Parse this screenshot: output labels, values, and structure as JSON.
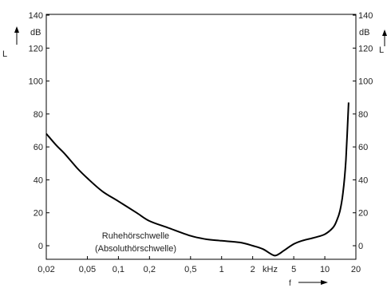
{
  "chart_data": {
    "type": "line",
    "xscale": "log",
    "xlim": [
      0.02,
      20
    ],
    "ylim": [
      -5,
      140
    ],
    "grid": false,
    "x_ticks": [
      {
        "value": 0.02,
        "label": "0,02"
      },
      {
        "value": 0.05,
        "label": "0,05"
      },
      {
        "value": 0.1,
        "label": "0,1"
      },
      {
        "value": 0.2,
        "label": "0,2"
      },
      {
        "value": 0.5,
        "label": "0,5"
      },
      {
        "value": 1,
        "label": "1"
      },
      {
        "value": 2,
        "label": "2"
      },
      {
        "value": 5,
        "label": "5"
      },
      {
        "value": 10,
        "label": "10"
      },
      {
        "value": 20,
        "label": "20"
      }
    ],
    "x_unit_label": "kHz",
    "x_axis_label": "f",
    "y_ticks": [
      0,
      20,
      40,
      60,
      80,
      100,
      120,
      140
    ],
    "y_unit_label": "dB",
    "y_axis_label": "L",
    "annotation_line1": "Ruhehörschwelle",
    "annotation_line2": "(Absoluthörschwelle)",
    "series": [
      {
        "x": [
          0.02,
          0.025,
          0.03,
          0.04,
          0.05,
          0.07,
          0.1,
          0.15,
          0.2,
          0.3,
          0.5,
          0.7,
          1,
          1.5,
          2,
          2.5,
          3,
          3.3,
          3.6,
          4,
          5,
          6,
          8,
          10,
          12,
          13,
          14,
          15,
          16,
          17
        ],
        "y": [
          68,
          61,
          56,
          47,
          41,
          33,
          27,
          20,
          15,
          11,
          6,
          4,
          3,
          2,
          0,
          -2,
          -5,
          -6,
          -5,
          -3,
          1,
          3,
          5,
          7,
          11,
          15,
          21,
          32,
          52,
          87
        ],
        "color": "#000000"
      }
    ]
  }
}
